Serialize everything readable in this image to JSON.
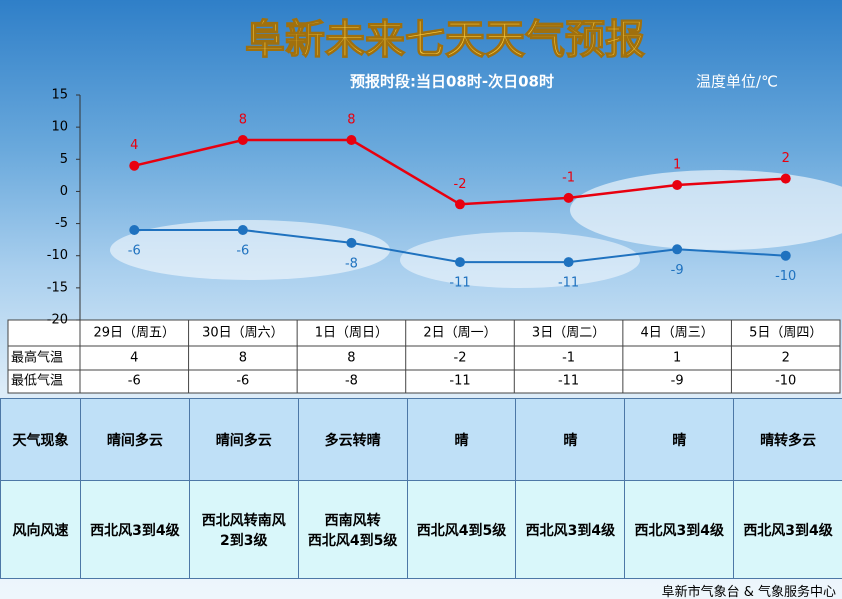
{
  "chart_data": {
    "type": "line",
    "title": "阜新未来七天天气预报",
    "subtitle": "预报时段:当日08时-次日08时",
    "unit_note": "温度单位/℃",
    "categories": [
      "29日（周五）",
      "30日（周六）",
      "1日（周日）",
      "2日（周一）",
      "3日（周二）",
      "4日（周三）",
      "5日（周四）"
    ],
    "series": [
      {
        "name": "最高气温",
        "color": "#e8000f",
        "values": [
          4,
          8,
          8,
          -2,
          -1,
          1,
          2
        ]
      },
      {
        "name": "最低气温",
        "color": "#1f72bf",
        "values": [
          -6,
          -6,
          -8,
          -11,
          -11,
          -9,
          -10
        ]
      }
    ],
    "ylim": [
      -20,
      15
    ],
    "yticks": [
      -20,
      -15,
      -10,
      -5,
      0,
      5,
      10,
      15
    ]
  },
  "weather_table": {
    "rows": [
      {
        "label": "天气现象",
        "cells": [
          "晴间多云",
          "晴间多云",
          "多云转晴",
          "晴",
          "晴",
          "晴",
          "晴转多云"
        ]
      },
      {
        "label": "风向风速",
        "cells": [
          "西北风3到4级",
          "西北风转南风\n2到3级",
          "西南风转\n西北风4到5级",
          "西北风4到5级",
          "西北风3到4级",
          "西北风3到4级",
          "西北风3到4级"
        ]
      }
    ]
  },
  "footer": "阜新市气象台 & 气象服务中心"
}
